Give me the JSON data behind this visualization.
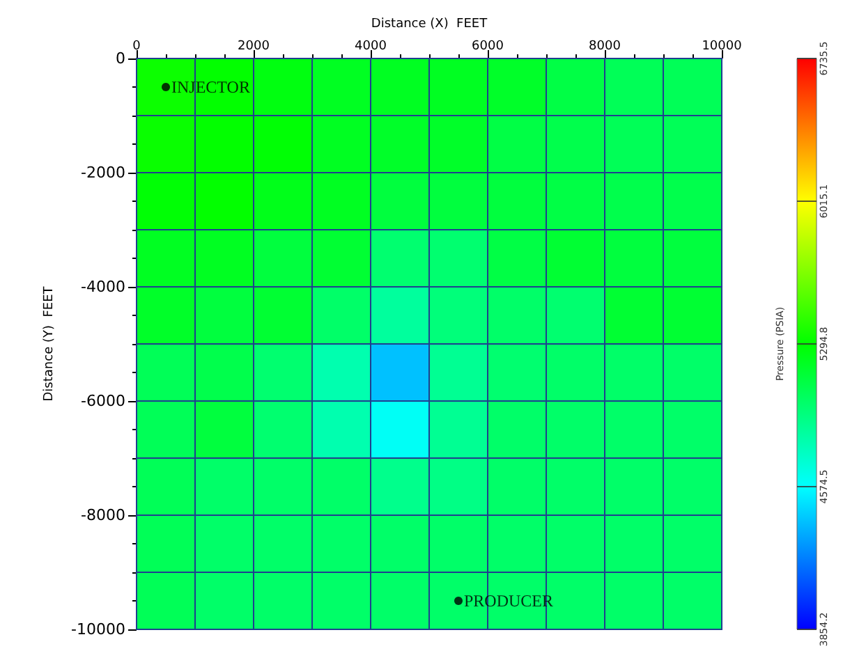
{
  "chart_data": {
    "type": "heatmap",
    "xlabel": "Distance (X)  FEET",
    "ylabel": "Distance (Y)  FEET",
    "clabel": "Pressure (PSIA)",
    "x": [
      500,
      1500,
      2500,
      3500,
      4500,
      5500,
      6500,
      7500,
      8500,
      9500
    ],
    "y": [
      -500,
      -1500,
      -2500,
      -3500,
      -4500,
      -5500,
      -6500,
      -7500,
      -8500,
      -9500
    ],
    "xlim": [
      0,
      10000
    ],
    "xticks": [
      0,
      2000,
      4000,
      6000,
      8000,
      10000
    ],
    "ylim": [
      -10000,
      0
    ],
    "yticks": [
      0,
      -2000,
      -4000,
      -6000,
      -8000,
      -10000
    ],
    "clim": [
      3854.2,
      6735.5
    ],
    "cticks": [
      3854.2,
      4574.5,
      5294.8,
      6015.1,
      6735.5
    ],
    "cells": [
      [
        5330,
        5300,
        5250,
        5200,
        5200,
        5200,
        5180,
        5100,
        5050,
        5050
      ],
      [
        5320,
        5300,
        5280,
        5200,
        5180,
        5180,
        5100,
        5080,
        5050,
        5050
      ],
      [
        5280,
        5300,
        5220,
        5200,
        5120,
        5120,
        5120,
        5100,
        5080,
        5080
      ],
      [
        5200,
        5200,
        5120,
        5150,
        4980,
        4980,
        5100,
        5150,
        5120,
        5120
      ],
      [
        5180,
        5120,
        5150,
        5000,
        4850,
        4950,
        5000,
        4980,
        5150,
        5150
      ],
      [
        5050,
        5080,
        4980,
        4800,
        4400,
        4880,
        4980,
        5000,
        5000,
        5000
      ],
      [
        5050,
        5120,
        4980,
        4800,
        4600,
        4880,
        5000,
        5000,
        5000,
        5000
      ],
      [
        5050,
        5000,
        5000,
        5000,
        4900,
        4920,
        5000,
        5000,
        5000,
        5000
      ],
      [
        5050,
        5000,
        5000,
        5000,
        5000,
        5000,
        5000,
        5000,
        5000,
        5000
      ],
      [
        5050,
        5000,
        5000,
        5000,
        5000,
        5000,
        5000,
        5000,
        5000,
        5000
      ]
    ],
    "series": [
      {
        "type": "scatter",
        "name": "INJECTOR",
        "color": "#000000",
        "x": [
          500
        ],
        "values": [
          -500
        ]
      },
      {
        "type": "scatter",
        "name": "PRODUCER",
        "color": "#000000",
        "x": [
          5500
        ],
        "values": [
          -9500
        ]
      }
    ],
    "marker": "circle"
  }
}
